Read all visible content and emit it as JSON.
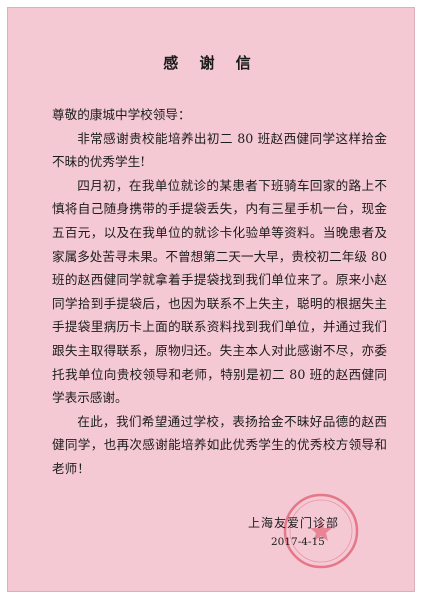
{
  "letter": {
    "title": "感 谢 信",
    "salutation": "尊敬的康城中学校领导：",
    "paragraphs": [
      "非常感谢贵校能培养出初二 80 班赵西健同学这样拾金不昧的优秀学生!",
      "四月初，在我单位就诊的某患者下班骑车回家的路上不慎将自己随身携带的手提袋丢失，内有三星手机一台，现金五百元，以及在我单位的就诊卡化验单等资料。当晚患者及家属多处苦寻未果。不曾想第二天一大早，贵校初二年级 80 班的赵西健同学就拿着手提袋找到我们单位来了。原来小赵同学拾到手提袋后，也因为联系不上失主，聪明的根据失主手提袋里病历卡上面的联系资料找到我们单位，并通过我们跟失主取得联系，原物归还。失主本人对此感谢不尽，亦委托我单位向贵校领导和老师，特别是初二 80 班的赵西健同学表示感谢。",
      "在此，我们希望通过学校，表扬拾金不昧好品德的赵西健同学，也再次感谢能培养如此优秀学生的优秀校方领导和老师！"
    ],
    "signature": "上海友爱门诊部",
    "date": "2017-4-15"
  },
  "colors": {
    "paper": "#f4c9d4",
    "seal": "#d8334a"
  }
}
